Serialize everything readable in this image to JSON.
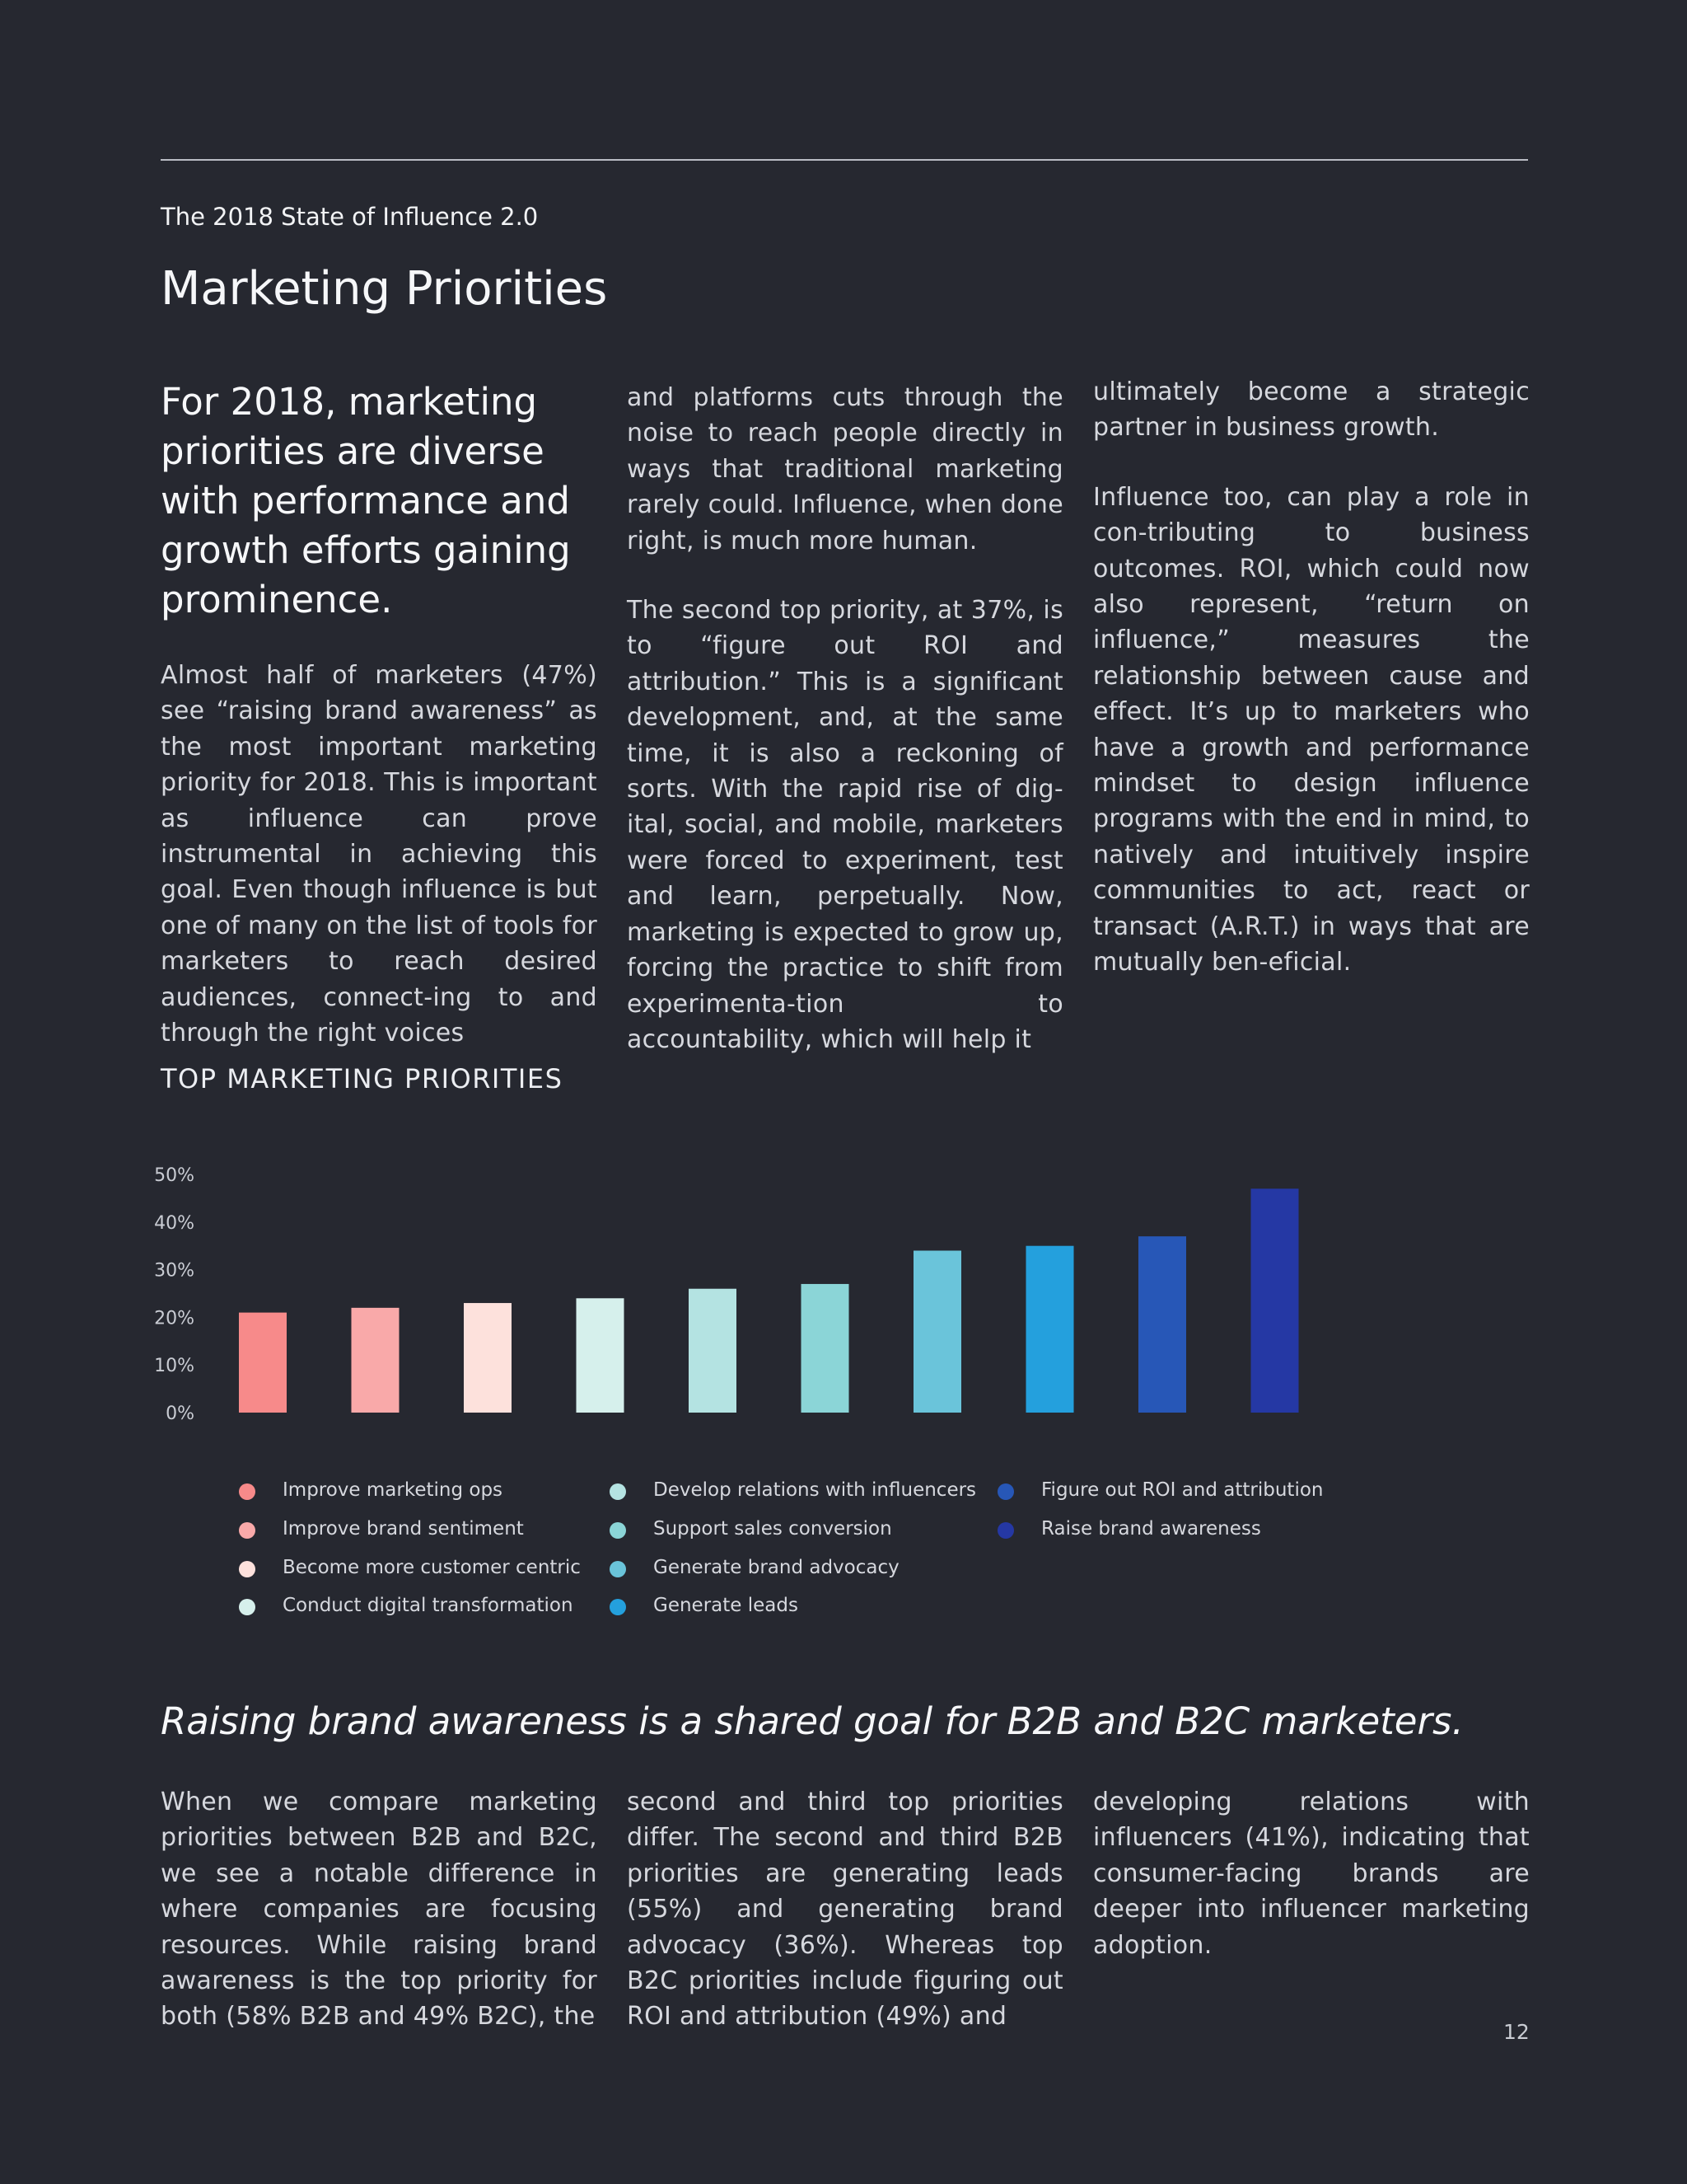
{
  "header": {
    "doc_title": "The 2018 State of Influence 2.0",
    "section_title": "Marketing Priorities"
  },
  "intro": {
    "lead": "For 2018, marketing priorities are diverse with performance and growth efforts gaining prominence.",
    "col1": "Almost half of marketers (47%) see “raising brand awareness” as the most important marketing priority for 2018. This is important as influence can prove instrumental in achieving this goal. Even though influence is but one of many on the list of tools for marketers to reach desired audiences, connect-ing to and through the right voices",
    "col2_p1": "and platforms cuts through the noise to reach people directly in ways that traditional marketing rarely could. Influence, when done right, is much more human.",
    "col2_p2": "The second top priority, at 37%, is to “figure out ROI and attribution.” This is a significant development, and, at the same time, it is also a reckoning of sorts. With the rapid rise of dig-ital, social, and mobile, marketers were forced to experiment, test and learn, perpetually. Now, marketing is expected to grow up, forcing the practice to shift from experimenta-tion to accountability, which will help it",
    "col3_p1": "ultimately become a strategic partner in business growth.",
    "col3_p2": "Influence too, can play a role in con-tributing to business outcomes. ROI, which could now also represent, “return on influence,” measures the relationship between cause and effect. It’s up to marketers who have a growth and performance mindset to design influence programs with the end in mind, to natively and intuitively inspire communities to act, react or transact (A.R.T.) in ways that are mutually ben-eficial."
  },
  "chart_data": {
    "type": "bar",
    "title": "TOP MARKETING PRIORITIES",
    "ytick_labels": [
      "0%",
      "10%",
      "20%",
      "30%",
      "40%",
      "50%"
    ],
    "ylim": [
      0,
      50
    ],
    "categories": [
      "Improve marketing ops",
      "Improve brand sentiment",
      "Become more customer centric",
      "Conduct digital transformation",
      "Develop relations with influencers",
      "Support sales conversion",
      "Generate brand advocacy",
      "Generate leads",
      "Figure out ROI and attribution",
      "Raise brand awareness"
    ],
    "values": [
      21,
      22,
      23,
      24,
      26,
      27,
      34,
      35,
      37,
      47
    ],
    "colors": [
      "#f78a8a",
      "#f9a9a9",
      "#fde1dc",
      "#d6f0ec",
      "#b4e3e2",
      "#8bd5d7",
      "#6ac4da",
      "#24a0dd",
      "#2757b7",
      "#2538a4"
    ],
    "grid": false,
    "legend": "bottom"
  },
  "subhead": "Raising brand awareness is a shared goal for B2B and B2C marketers.",
  "bottom": {
    "col1": "When we compare marketing priorities between B2B and B2C, we see a notable difference in where companies are focusing resources. While raising brand awareness is the top priority for both (58% B2B and 49% B2C), the",
    "col2": "second and third top priorities differ. The second and third B2B priorities are generating leads (55%) and generating brand advocacy (36%). Whereas top B2C priorities include figuring out ROI and attribution (49%) and",
    "col3": "developing relations with influencers (41%), indicating that consumer-facing brands are deeper into influencer marketing adoption."
  },
  "page_number": "12"
}
